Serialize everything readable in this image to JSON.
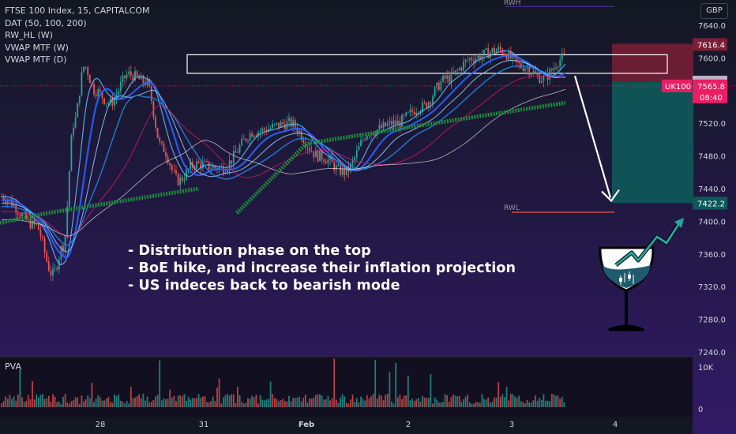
{
  "header": {
    "title": "FTSE 100 Index, 15, CAPITALCOM",
    "indicators": [
      "DAT (50, 100, 200)",
      "RW_HL (W)",
      "VWAP MTF (W)",
      "VWAP MTF (D)"
    ],
    "currency": "GBP"
  },
  "annotation": [
    "- Distribution phase on the top",
    "- BoE hike, and increase their inflation projection",
    "- US indeces back to bearish mode"
  ],
  "volume_pane": {
    "label": "PVA",
    "ticks": [
      "10K",
      "0"
    ]
  },
  "levels": {
    "rwh": "RWH",
    "rwl": "RWL"
  },
  "colors": {
    "background_top": "#131722",
    "background_bottom": "#311a66",
    "stop_zone": "#7a1f36",
    "target_zone": "#0e5a5a",
    "bullish": "#26a69a",
    "bearish": "#ef5350",
    "vwap_green": "#1e8c3a",
    "ma_blue": "#2962ff",
    "arrow": "#ffffff"
  },
  "icons": [
    "wine-glass-icon",
    "trend-arrow-icon"
  ],
  "chart_data": {
    "type": "candlestick",
    "symbol": "FTSE 100 Index",
    "timeframe": "15",
    "exchange": "CAPITALCOM",
    "currency": "GBP",
    "y_axis": {
      "range": [
        7240,
        7660
      ],
      "ticks": [
        7640.0,
        7600.0,
        7560.0,
        7520.0,
        7480.0,
        7440.0,
        7400.0,
        7360.0,
        7320.0,
        7280.0,
        7240.0
      ],
      "tick_labels": [
        "7640.0",
        "7600.0",
        "7560.0",
        "7520.0",
        "7480.0",
        "7440.0",
        "7400.0",
        "7360.0",
        "7320.0",
        "7280.0",
        "7240.0"
      ]
    },
    "x_axis": {
      "labels": [
        {
          "text": "28",
          "date": "2023-01-28"
        },
        {
          "text": "31",
          "date": "2023-01-31"
        },
        {
          "text": "Feb",
          "date": "2023-02-01"
        },
        {
          "text": "2",
          "date": "2023-02-02"
        },
        {
          "text": "3",
          "date": "2023-02-03"
        },
        {
          "text": "4",
          "date": "2023-02-04"
        }
      ]
    },
    "price_labels": {
      "stop": {
        "value": 7616.4,
        "text": "7616.4"
      },
      "entry": {
        "value": 7570.5,
        "text": "7570.5"
      },
      "current": {
        "value": 7565.8,
        "text": "7565.8",
        "symbol": "UK100",
        "countdown": "08:40"
      },
      "target": {
        "value": 7422.2,
        "text": "7422.2"
      }
    },
    "price_path": [
      {
        "x": "2023-01-26",
        "y": 7430
      },
      {
        "x": "2023-01-26",
        "y": 7395
      },
      {
        "x": "2023-01-27",
        "y": 7335
      },
      {
        "x": "2023-01-27",
        "y": 7370
      },
      {
        "x": "2023-01-27",
        "y": 7520
      },
      {
        "x": "2023-01-27",
        "y": 7590
      },
      {
        "x": "2023-01-27",
        "y": 7560
      },
      {
        "x": "2023-01-28",
        "y": 7545
      },
      {
        "x": "2023-01-28",
        "y": 7580
      },
      {
        "x": "2023-01-29",
        "y": 7570
      },
      {
        "x": "2023-01-29",
        "y": 7490
      },
      {
        "x": "2023-01-30",
        "y": 7450
      },
      {
        "x": "2023-01-30",
        "y": 7470
      },
      {
        "x": "2023-01-31",
        "y": 7465
      },
      {
        "x": "2023-01-31",
        "y": 7510
      },
      {
        "x": "2023-01-31",
        "y": 7520
      },
      {
        "x": "2023-02-01",
        "y": 7480
      },
      {
        "x": "2023-02-01",
        "y": 7460
      },
      {
        "x": "2023-02-01",
        "y": 7510
      },
      {
        "x": "2023-02-01",
        "y": 7520
      },
      {
        "x": "2023-02-02",
        "y": 7540
      },
      {
        "x": "2023-02-02",
        "y": 7575
      },
      {
        "x": "2023-02-02",
        "y": 7600
      },
      {
        "x": "2023-02-02",
        "y": 7610
      },
      {
        "x": "2023-02-03",
        "y": 7590
      },
      {
        "x": "2023-02-03",
        "y": 7575
      },
      {
        "x": "2023-02-03",
        "y": 7600
      },
      {
        "x": "2023-02-03",
        "y": 7575
      },
      {
        "x": "2023-02-03",
        "y": 7566
      }
    ],
    "vwap_weekly_green": [
      {
        "x": "2023-01-26",
        "y": 7398
      },
      {
        "x": "2023-01-27",
        "y": 7410
      },
      {
        "x": "2023-01-30",
        "y": 7435
      },
      {
        "x": "2023-01-31",
        "y": 7440
      },
      {
        "x": "2023-02-01",
        "y": 7495
      },
      {
        "x": "2023-02-02",
        "y": 7515
      },
      {
        "x": "2023-02-03",
        "y": 7545
      }
    ],
    "distribution_box": {
      "low": 7585,
      "high": 7600
    },
    "rwh_level": 7660,
    "rwl_level": 7411,
    "risk_reward": {
      "entry": 7570.5,
      "stop": 7616.4,
      "target": 7422.2
    },
    "projection_arrow": {
      "from": 7578,
      "to": 7425
    }
  }
}
